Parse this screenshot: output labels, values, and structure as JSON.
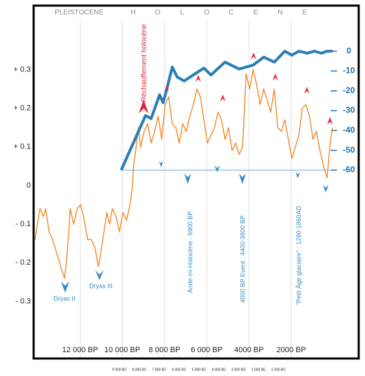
{
  "chart_data": {
    "type": "line",
    "period_label": "PLEISTOCENE",
    "holocene_letters": [
      "H",
      "O",
      "L",
      "O",
      "C",
      "E",
      "N",
      "E"
    ],
    "xlim": [
      14200,
      -1200
    ],
    "xticks": [
      {
        "value": 12000,
        "label": "12 000 BP"
      },
      {
        "value": 10000,
        "label": "10 000 BP"
      },
      {
        "value": 8000,
        "label": "8 000 BP"
      },
      {
        "value": 6000,
        "label": "6 000 BP"
      },
      {
        "value": 4000,
        "label": "4000 BP"
      },
      {
        "value": 2000,
        "label": "2000 BP"
      }
    ],
    "x2lim": [
      -13320,
      3035
    ],
    "x2ticks": [
      {
        "value": -9000,
        "label": "9 000 BC"
      },
      {
        "value": -8000,
        "label": "8 000 BC"
      },
      {
        "value": -7000,
        "label": "7 000 BC"
      },
      {
        "value": -6000,
        "label": "6 000 BC"
      },
      {
        "value": -5000,
        "label": "5 000 BC"
      },
      {
        "value": -4000,
        "label": "4 000 BC"
      },
      {
        "value": -3000,
        "label": "3 000 BC"
      },
      {
        "value": -2000,
        "label": "2 000 BC"
      },
      {
        "value": -1000,
        "label": "1 000 BC"
      }
    ],
    "ylim": [
      -0.448,
      0.466
    ],
    "yticks": [
      {
        "value": 0.3,
        "label": "+ 0.3"
      },
      {
        "value": 0.2,
        "label": "+ 0.2"
      },
      {
        "value": 0.1,
        "label": "+ 0.1"
      },
      0,
      {
        "value": -0.1,
        "label": "- 0.1"
      },
      {
        "value": -0.2,
        "label": "- 0.2"
      },
      {
        "value": -0.3,
        "label": "- 0.3"
      }
    ],
    "y2lim": [
      -155,
      23
    ],
    "y2ticks": [
      0,
      -10,
      -20,
      -30,
      -40,
      -50,
      -60
    ],
    "y2_reference": -60,
    "grid": true,
    "annotations": [
      "Réchauffement holocène",
      "Aride mi-Holocène - 6900 BP",
      "4000 BP Event : 4400-3800 BP",
      "\"Petit Âge glaciaire\" : 1280-1860AD",
      "Dryas II",
      "Dryas III"
    ],
    "series": [
      {
        "color": "#f0892a",
        "axis": "y",
        "x": [
          14133,
          13900,
          13733,
          13633,
          13467,
          13300,
          13133,
          12967,
          12867,
          12733,
          12633,
          12533,
          12467,
          12300,
          12133,
          11967,
          11800,
          11633,
          11467,
          11300,
          11133,
          11033,
          10867,
          10733,
          10600,
          10467,
          10300,
          10133,
          9967,
          9800,
          9633,
          9533,
          9467,
          9367,
          9233,
          9133,
          8967,
          8800,
          8633,
          8467,
          8300,
          8133,
          7967,
          7800,
          7633,
          7467,
          7300,
          7133,
          6967,
          6800,
          6633,
          6467,
          6300,
          6133,
          5967,
          5800,
          5633,
          5467,
          5300,
          5133,
          4967,
          4800,
          4633,
          4467,
          4300,
          4133,
          3967,
          3800,
          3633,
          3467,
          3300,
          3133,
          2967,
          2800,
          2633,
          2467,
          2300,
          2133,
          1967,
          1800,
          1633,
          1467,
          1300,
          1133,
          967,
          800,
          633,
          467,
          300,
          133,
          33
        ],
        "values": [
          -0.14,
          -0.06,
          -0.08,
          -0.06,
          -0.12,
          -0.14,
          -0.17,
          -0.2,
          -0.22,
          -0.24,
          -0.19,
          -0.12,
          -0.06,
          -0.1,
          -0.06,
          -0.05,
          -0.09,
          -0.14,
          -0.14,
          -0.16,
          -0.21,
          -0.18,
          -0.12,
          -0.07,
          -0.1,
          -0.06,
          -0.08,
          -0.12,
          -0.07,
          -0.09,
          -0.05,
          -0.01,
          0.05,
          0.09,
          0.15,
          0.1,
          0.14,
          0.16,
          0.11,
          0.14,
          0.18,
          0.12,
          0.21,
          0.23,
          0.16,
          0.15,
          0.11,
          0.16,
          0.14,
          0.18,
          0.21,
          0.25,
          0.23,
          0.17,
          0.11,
          0.13,
          0.15,
          0.19,
          0.17,
          0.12,
          0.15,
          0.09,
          0.11,
          0.08,
          0.1,
          0.29,
          0.25,
          0.3,
          0.26,
          0.21,
          0.25,
          0.22,
          0.19,
          0.25,
          0.15,
          0.14,
          0.17,
          0.12,
          0.07,
          0.1,
          0.13,
          0.2,
          0.21,
          0.18,
          0.12,
          0.14,
          0.09,
          0.05,
          0.02,
          0.12,
          0.15
        ]
      },
      {
        "color": "#2a7db5",
        "axis": "y2",
        "x": [
          10050,
          8900,
          8633,
          8233,
          8067,
          7900,
          7633,
          7400,
          7067,
          6133,
          5800,
          5133,
          4467,
          3800,
          3300,
          2800,
          2300,
          1967,
          1633,
          1233,
          900,
          567,
          300,
          33
        ],
        "values": [
          -60,
          -32.5,
          -34,
          -22,
          -26,
          -19.5,
          -8,
          -13,
          -15,
          -8.5,
          -12,
          -5.5,
          -9,
          -7,
          -3,
          -5.5,
          0,
          -2,
          0,
          -1,
          0,
          -1,
          0,
          0
        ]
      }
    ]
  }
}
